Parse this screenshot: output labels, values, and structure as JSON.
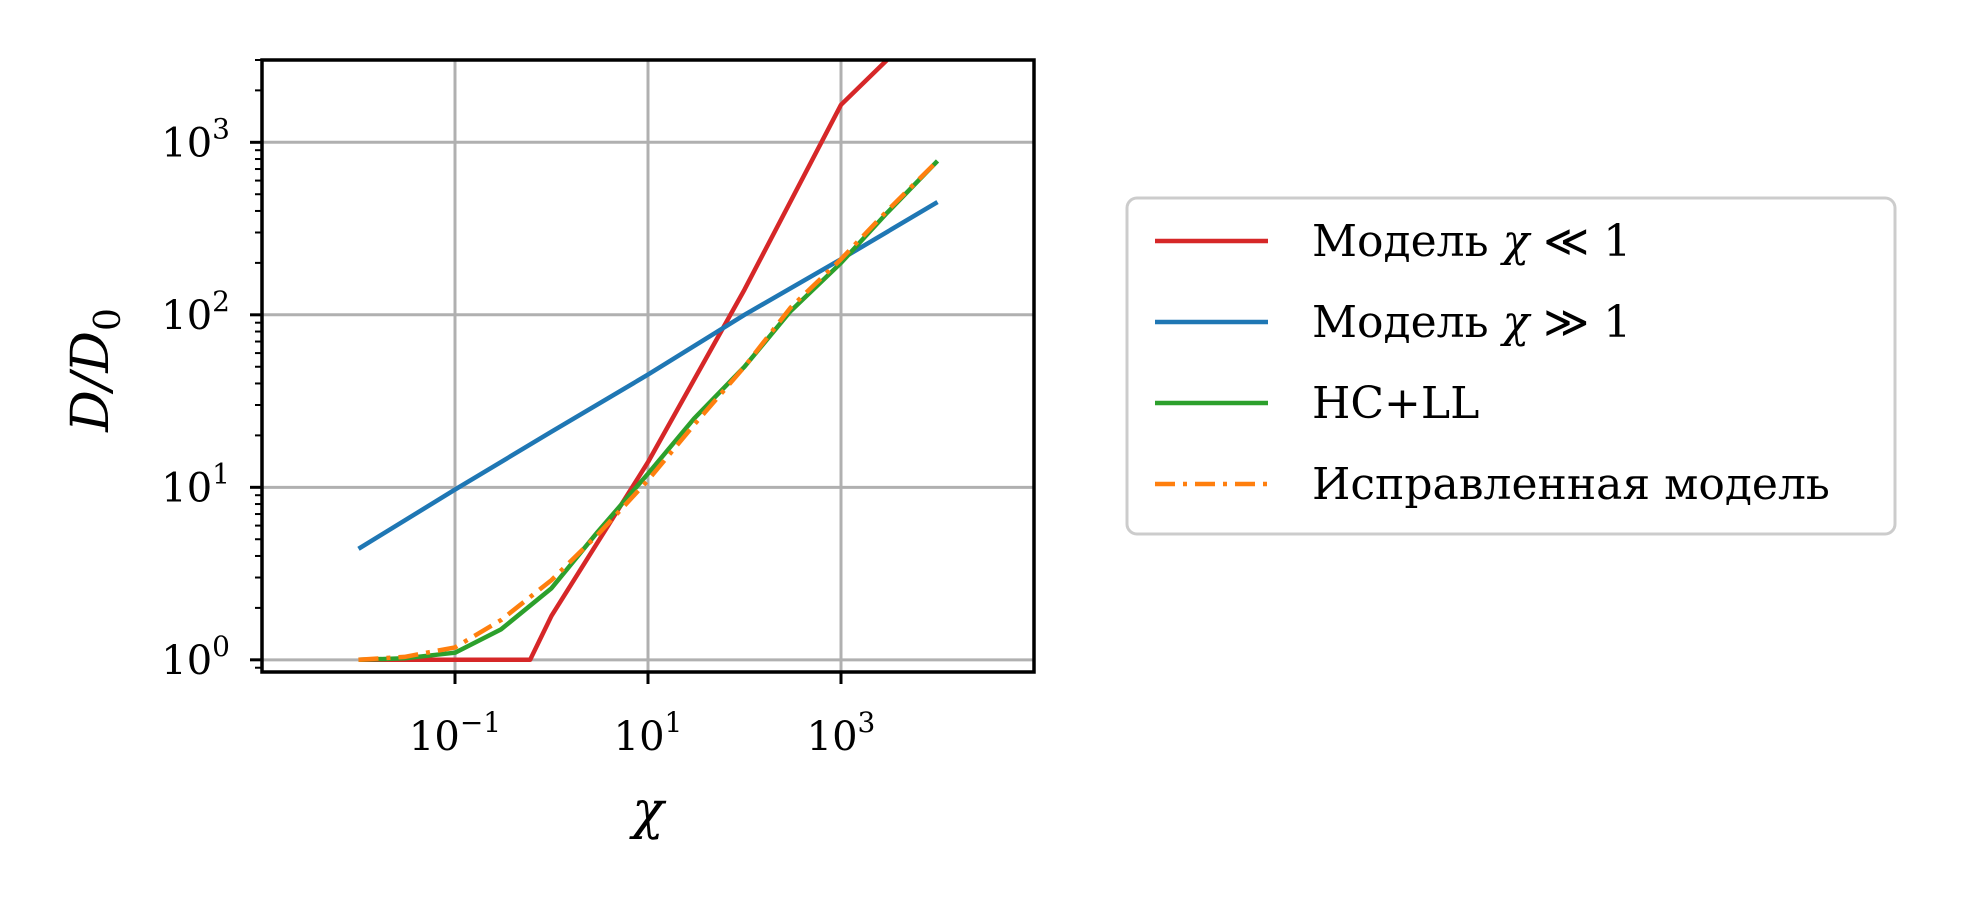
{
  "chart_data": {
    "type": "line",
    "xlabel": "χ",
    "ylabel": "D/D0",
    "xscale": "log",
    "yscale": "log",
    "xlim": [
      0.001,
      100000
    ],
    "ylim": [
      0.85,
      3000
    ],
    "xticks": [
      {
        "value": 0.1,
        "base": "10",
        "exp": "−1"
      },
      {
        "value": 10,
        "base": "10",
        "exp": "1"
      },
      {
        "value": 1000,
        "base": "10",
        "exp": "3"
      }
    ],
    "yticks": [
      {
        "value": 1,
        "base": "10",
        "exp": "0"
      },
      {
        "value": 10,
        "base": "10",
        "exp": "1"
      },
      {
        "value": 100,
        "base": "10",
        "exp": "2"
      },
      {
        "value": 1000,
        "base": "10",
        "exp": "3"
      }
    ],
    "grid": true,
    "legend_position": "right, outside plot",
    "series": [
      {
        "name": "Модель χ ≪ 1",
        "color": "#d62728",
        "style": "solid",
        "x": [
          0.01,
          0.1,
          0.5,
          0.6,
          1,
          10,
          100,
          1000,
          3000
        ],
        "y": [
          1,
          1,
          1,
          1,
          1.8,
          14,
          140,
          1650,
          3000
        ]
      },
      {
        "name": "Модель χ ≫ 1",
        "color": "#1f77b4",
        "style": "solid",
        "x": [
          0.01,
          0.1,
          1,
          10,
          100,
          1000,
          10000
        ],
        "y": [
          4.4,
          9.7,
          21,
          45,
          100,
          210,
          450
        ]
      },
      {
        "name": "HC+LL",
        "color": "#2ca02c",
        "style": "solid",
        "x": [
          0.01,
          0.03,
          0.1,
          0.3,
          1,
          3,
          10,
          30,
          100,
          300,
          1000,
          3000,
          10000
        ],
        "y": [
          1,
          1.02,
          1.1,
          1.5,
          2.6,
          5.5,
          12,
          25,
          50,
          105,
          200,
          390,
          780
        ]
      },
      {
        "name": "Исправленная модель",
        "color": "#ff7f0e",
        "style": "dashdot",
        "x": [
          0.01,
          0.03,
          0.1,
          0.3,
          1,
          3,
          10,
          30,
          100,
          300,
          1000,
          3000,
          10000
        ],
        "y": [
          1,
          1.04,
          1.18,
          1.7,
          2.9,
          5.3,
          11,
          23,
          50,
          110,
          210,
          400,
          780
        ]
      }
    ]
  },
  "legend": {
    "items": [
      {
        "prefix": "Модель ",
        "symbol": "χ",
        "suffix": " ≪ 1"
      },
      {
        "prefix": "Модель ",
        "symbol": "χ",
        "suffix": " ≫ 1"
      },
      {
        "prefix": "HC+LL",
        "symbol": "",
        "suffix": ""
      },
      {
        "prefix": "Исправленная модель",
        "symbol": "",
        "suffix": ""
      }
    ]
  }
}
